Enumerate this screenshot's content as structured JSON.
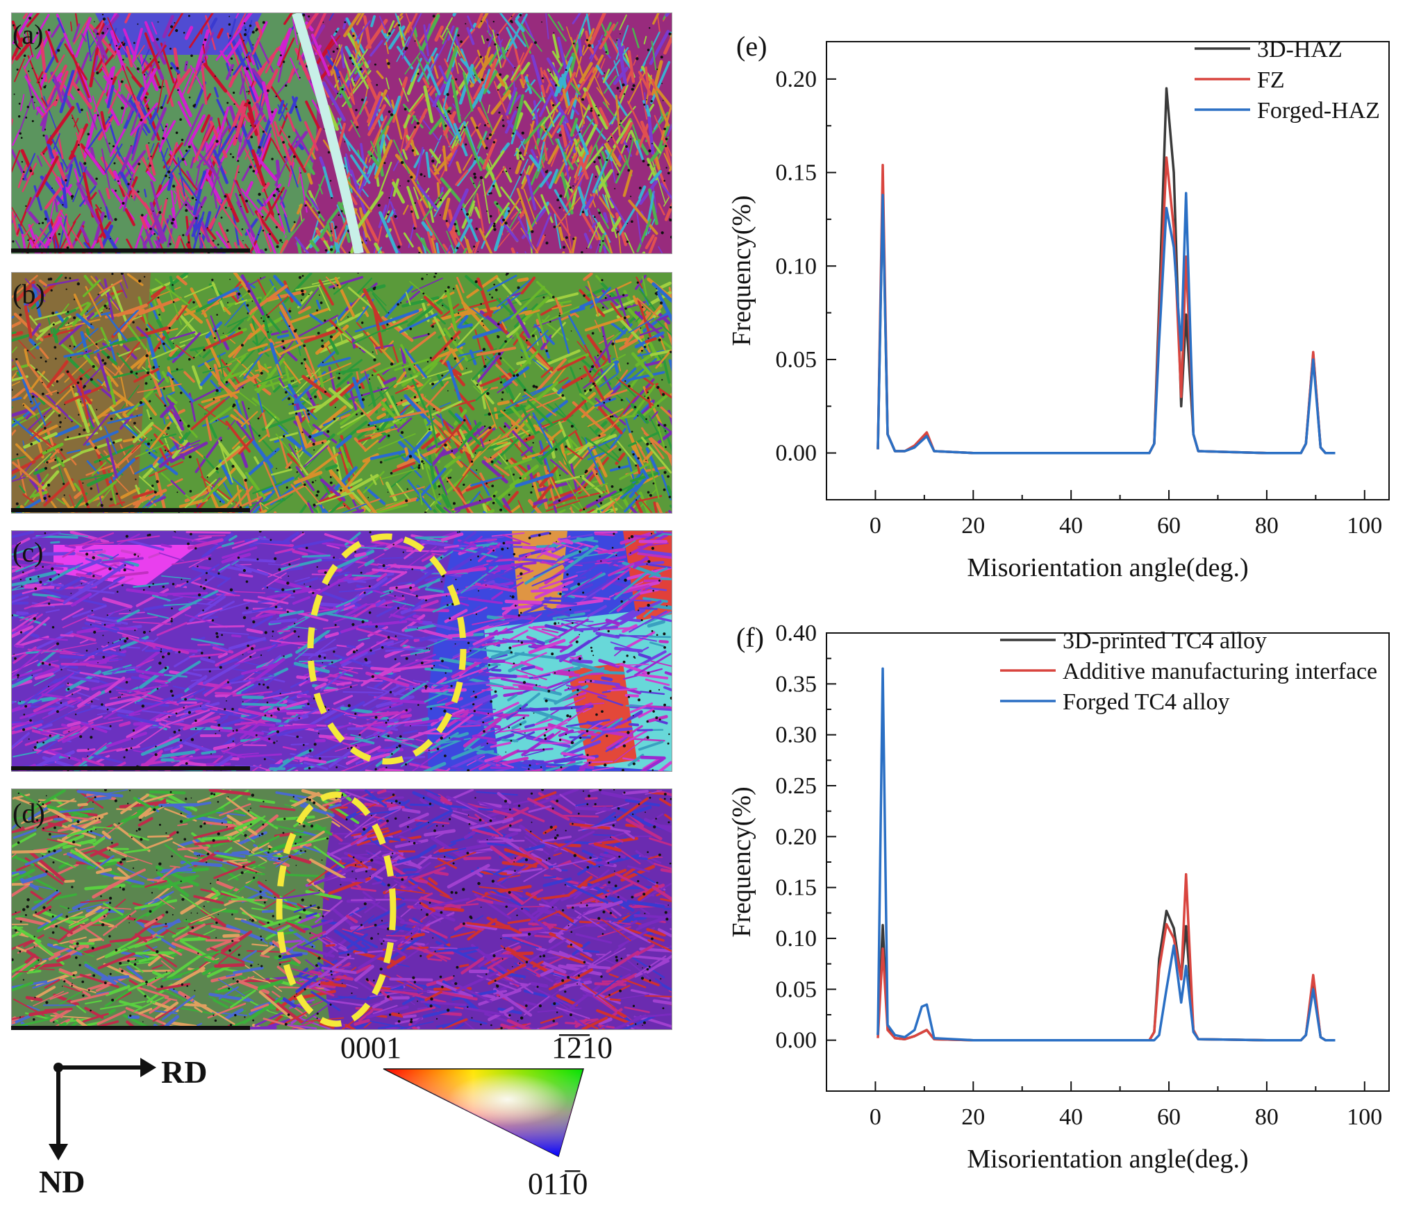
{
  "panels": {
    "a": "(a)",
    "b": "(b)",
    "c": "(c)",
    "d": "(d)",
    "e": "(e)",
    "f": "(f)"
  },
  "orientation": {
    "rd": "RD",
    "nd": "ND"
  },
  "ipf_legend": {
    "top_left": "0001",
    "top_right": "1̅2̅10",
    "bottom": "011̅0"
  },
  "colors": {
    "black": "#3a3a3a",
    "red": "#d9453f",
    "blue": "#2a6fc4",
    "ellipse": "#f5e93a"
  },
  "chart_data": [
    {
      "type": "line",
      "panel": "(e)",
      "xlabel": "Misorientation angle(deg.)",
      "ylabel": "Frequency(%)",
      "xlim": [
        -10,
        105
      ],
      "ylim": [
        -0.025,
        0.22
      ],
      "xticks": [
        0,
        20,
        40,
        60,
        80,
        100
      ],
      "yticks": [
        0.0,
        0.05,
        0.1,
        0.15,
        0.2
      ],
      "ytick_labels": [
        "0.00",
        "0.05",
        "0.10",
        "0.15",
        "0.20"
      ],
      "xtick_labels": [
        "0",
        "20",
        "40",
        "60",
        "80",
        "100"
      ],
      "legend_position": "top-right",
      "series": [
        {
          "name": "3D-HAZ",
          "color": "#3a3a3a",
          "points": [
            [
              0.5,
              0.002
            ],
            [
              1.5,
              0.14
            ],
            [
              2.5,
              0.01
            ],
            [
              4,
              0.001
            ],
            [
              6,
              0.001
            ],
            [
              8,
              0.003
            ],
            [
              10.5,
              0.01
            ],
            [
              12,
              0.001
            ],
            [
              20,
              0
            ],
            [
              40,
              0
            ],
            [
              56,
              0
            ],
            [
              57,
              0.005
            ],
            [
              58,
              0.08
            ],
            [
              59.5,
              0.195
            ],
            [
              61,
              0.15
            ],
            [
              62.5,
              0.025
            ],
            [
              63.5,
              0.074
            ],
            [
              65,
              0.01
            ],
            [
              66,
              0.001
            ],
            [
              80,
              0
            ],
            [
              87,
              0
            ],
            [
              88,
              0.005
            ],
            [
              89.5,
              0.053
            ],
            [
              91,
              0.003
            ],
            [
              92,
              0
            ],
            [
              94,
              0
            ]
          ]
        },
        {
          "name": "FZ",
          "color": "#d9453f",
          "points": [
            [
              0.5,
              0.002
            ],
            [
              1.5,
              0.154
            ],
            [
              2.5,
              0.01
            ],
            [
              4,
              0.001
            ],
            [
              6,
              0.001
            ],
            [
              8,
              0.004
            ],
            [
              10.5,
              0.011
            ],
            [
              12,
              0.001
            ],
            [
              20,
              0
            ],
            [
              40,
              0
            ],
            [
              56,
              0
            ],
            [
              57,
              0.005
            ],
            [
              58,
              0.07
            ],
            [
              59.5,
              0.158
            ],
            [
              61,
              0.12
            ],
            [
              62.5,
              0.03
            ],
            [
              63.5,
              0.105
            ],
            [
              65,
              0.01
            ],
            [
              66,
              0.001
            ],
            [
              80,
              0
            ],
            [
              87,
              0
            ],
            [
              88,
              0.005
            ],
            [
              89.5,
              0.054
            ],
            [
              91,
              0.003
            ],
            [
              92,
              0
            ],
            [
              94,
              0
            ]
          ]
        },
        {
          "name": "Forged-HAZ",
          "color": "#2a6fc4",
          "points": [
            [
              0.5,
              0.002
            ],
            [
              1.5,
              0.138
            ],
            [
              2.5,
              0.01
            ],
            [
              4,
              0.001
            ],
            [
              6,
              0.001
            ],
            [
              8,
              0.003
            ],
            [
              10.5,
              0.009
            ],
            [
              12,
              0.001
            ],
            [
              20,
              0
            ],
            [
              40,
              0
            ],
            [
              56,
              0
            ],
            [
              57,
              0.005
            ],
            [
              58,
              0.06
            ],
            [
              59.5,
              0.131
            ],
            [
              61,
              0.11
            ],
            [
              62.5,
              0.055
            ],
            [
              63.5,
              0.139
            ],
            [
              65,
              0.01
            ],
            [
              66,
              0.001
            ],
            [
              80,
              0
            ],
            [
              87,
              0
            ],
            [
              88,
              0.005
            ],
            [
              89.5,
              0.05
            ],
            [
              91,
              0.003
            ],
            [
              92,
              0
            ],
            [
              94,
              0
            ]
          ]
        }
      ]
    },
    {
      "type": "line",
      "panel": "(f)",
      "xlabel": "Misorientation angle(deg.)",
      "ylabel": "Frequency(%)",
      "xlim": [
        -10,
        105
      ],
      "ylim": [
        -0.05,
        0.4
      ],
      "xticks": [
        0,
        20,
        40,
        60,
        80,
        100
      ],
      "yticks": [
        0.0,
        0.05,
        0.1,
        0.15,
        0.2,
        0.25,
        0.3,
        0.35,
        0.4
      ],
      "ytick_labels": [
        "0.00",
        "0.05",
        "0.10",
        "0.15",
        "0.20",
        "0.25",
        "0.30",
        "0.35",
        "0.40"
      ],
      "xtick_labels": [
        "0",
        "20",
        "40",
        "60",
        "80",
        "100"
      ],
      "legend_position": "top-right",
      "series": [
        {
          "name": "3D-printed TC4 alloy",
          "color": "#3a3a3a",
          "points": [
            [
              0.5,
              0.005
            ],
            [
              1.5,
              0.113
            ],
            [
              2.5,
              0.012
            ],
            [
              4,
              0.002
            ],
            [
              6,
              0.001
            ],
            [
              8,
              0.004
            ],
            [
              10.5,
              0.01
            ],
            [
              12,
              0.001
            ],
            [
              20,
              0
            ],
            [
              40,
              0
            ],
            [
              56,
              0
            ],
            [
              57,
              0.008
            ],
            [
              58,
              0.08
            ],
            [
              59.5,
              0.127
            ],
            [
              61,
              0.11
            ],
            [
              62.5,
              0.06
            ],
            [
              63.5,
              0.112
            ],
            [
              65,
              0.01
            ],
            [
              66,
              0.001
            ],
            [
              80,
              0
            ],
            [
              87,
              0
            ],
            [
              88,
              0.005
            ],
            [
              89.5,
              0.06
            ],
            [
              91,
              0.003
            ],
            [
              92,
              0
            ],
            [
              94,
              0
            ]
          ]
        },
        {
          "name": "Additive manufacturing interface",
          "color": "#d9453f",
          "points": [
            [
              0.5,
              0.002
            ],
            [
              1.5,
              0.09
            ],
            [
              2.5,
              0.01
            ],
            [
              4,
              0.002
            ],
            [
              6,
              0.001
            ],
            [
              8,
              0.004
            ],
            [
              10.5,
              0.01
            ],
            [
              12,
              0.001
            ],
            [
              20,
              0
            ],
            [
              40,
              0
            ],
            [
              56,
              0
            ],
            [
              57,
              0.008
            ],
            [
              58,
              0.07
            ],
            [
              59.5,
              0.114
            ],
            [
              61,
              0.1
            ],
            [
              62.5,
              0.06
            ],
            [
              63.5,
              0.163
            ],
            [
              65,
              0.01
            ],
            [
              66,
              0.001
            ],
            [
              80,
              0
            ],
            [
              87,
              0
            ],
            [
              88,
              0.005
            ],
            [
              89.5,
              0.064
            ],
            [
              91,
              0.003
            ],
            [
              92,
              0
            ],
            [
              94,
              0
            ]
          ]
        },
        {
          "name": "Forged TC4 alloy",
          "color": "#2a6fc4",
          "points": [
            [
              0.5,
              0.005
            ],
            [
              1.5,
              0.365
            ],
            [
              2.5,
              0.015
            ],
            [
              4,
              0.005
            ],
            [
              6,
              0.003
            ],
            [
              8,
              0.01
            ],
            [
              9.5,
              0.033
            ],
            [
              10.5,
              0.035
            ],
            [
              12,
              0.002
            ],
            [
              20,
              0
            ],
            [
              40,
              0
            ],
            [
              57,
              0
            ],
            [
              58,
              0.005
            ],
            [
              59.5,
              0.05
            ],
            [
              61,
              0.093
            ],
            [
              62.5,
              0.037
            ],
            [
              63.5,
              0.073
            ],
            [
              65,
              0.008
            ],
            [
              66,
              0.001
            ],
            [
              80,
              0
            ],
            [
              87,
              0
            ],
            [
              88,
              0.005
            ],
            [
              89.5,
              0.05
            ],
            [
              91,
              0.003
            ],
            [
              92,
              0
            ],
            [
              94,
              0
            ]
          ]
        }
      ]
    }
  ]
}
